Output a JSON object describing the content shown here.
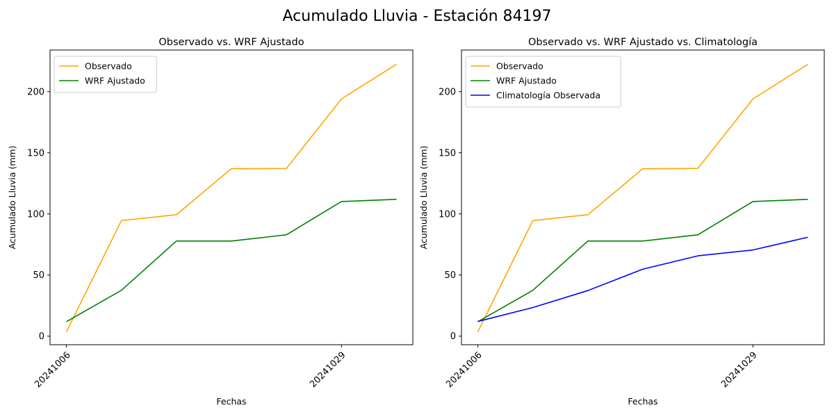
{
  "figure": {
    "suptitle": "Acumulado Lluvia - Estación 84197"
  },
  "chart_data": [
    {
      "type": "line",
      "title": "Observado vs. WRF Ajustado",
      "xlabel": "Fechas",
      "ylabel": "Acumulado Lluvia (mm)",
      "x": [
        "20241006",
        "",
        "",
        "",
        "",
        "20241029",
        ""
      ],
      "x_tick_labels": [
        "20241006",
        "20241029"
      ],
      "y_ticks": [
        0,
        50,
        100,
        150,
        200
      ],
      "ylim": [
        -7,
        234
      ],
      "legend_position": "upper-left",
      "series": [
        {
          "name": "Observado",
          "color": "#ffa500",
          "values": [
            3.5,
            94.5,
            99.3,
            137.0,
            137.2,
            194.0,
            222.4
          ]
        },
        {
          "name": "WRF Ajustado",
          "color": "#008000",
          "values": [
            11.8,
            37.5,
            77.8,
            77.8,
            82.9,
            110.1,
            111.9
          ]
        }
      ]
    },
    {
      "type": "line",
      "title": "Observado vs. WRF Ajustado vs. Climatología",
      "xlabel": "Fechas",
      "ylabel": "Acumulado Lluvia (mm)",
      "x": [
        "20241006",
        "",
        "",
        "",
        "",
        "20241029",
        ""
      ],
      "x_tick_labels": [
        "20241006",
        "20241029"
      ],
      "y_ticks": [
        0,
        50,
        100,
        150,
        200
      ],
      "ylim": [
        -7,
        234
      ],
      "legend_position": "upper-left",
      "series": [
        {
          "name": "Observado",
          "color": "#ffa500",
          "values": [
            3.5,
            94.5,
            99.3,
            137.0,
            137.2,
            194.0,
            222.4
          ]
        },
        {
          "name": "WRF Ajustado",
          "color": "#008000",
          "values": [
            11.8,
            37.5,
            77.8,
            77.8,
            82.9,
            110.1,
            111.9
          ]
        },
        {
          "name": "Climatología Observada",
          "color": "#0000ff",
          "values": [
            12.0,
            23.4,
            37.3,
            54.8,
            65.7,
            70.5,
            80.9
          ]
        }
      ]
    }
  ]
}
